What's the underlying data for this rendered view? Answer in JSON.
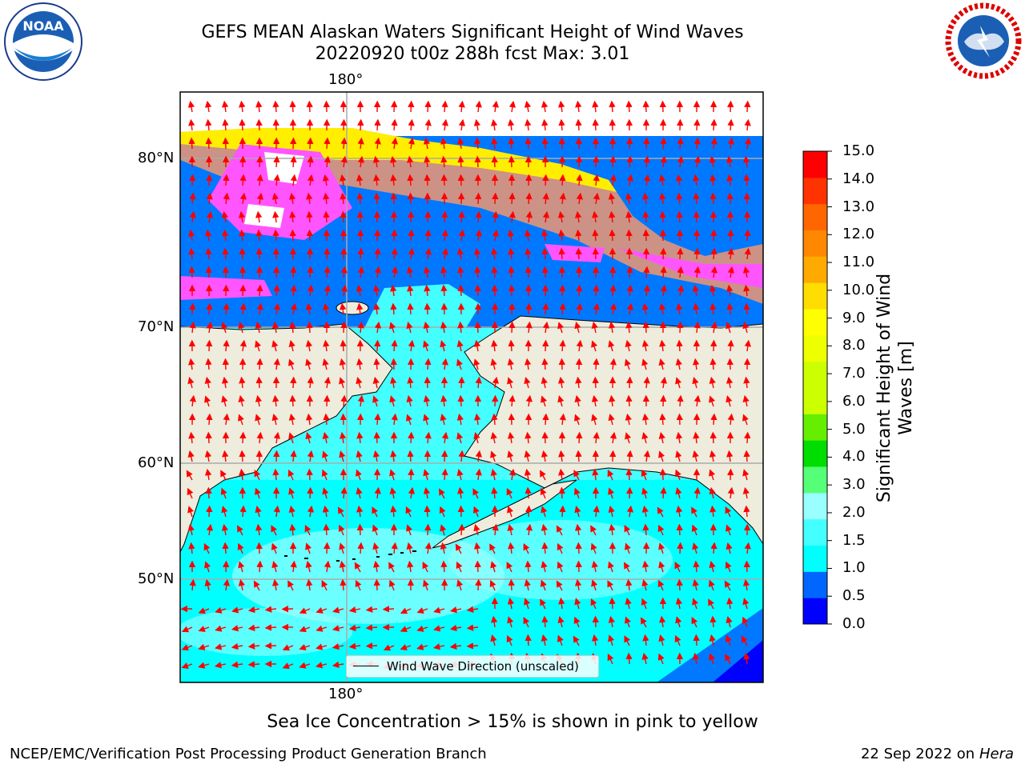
{
  "title": {
    "line1": "GEFS MEAN Alaskan Waters Significant Height of Wind Waves",
    "line2": "20220920 t00z 288h fcst   Max: 3.01"
  },
  "map": {
    "lon_labels": [
      "180°",
      "180°"
    ],
    "lat_labels": [
      "80°N",
      "70°N",
      "60°N",
      "50°N"
    ],
    "legend_text": "Wind Wave Direction (unscaled)",
    "colors": {
      "land": "#eeecdc",
      "ocean_low": "#00ffff",
      "ocean_mid": "#99ffff",
      "ocean_high": "#44ffff",
      "deep_blue": "#0078ff",
      "ice_pink": "#ff55ff",
      "ice_orange": "#ff9966",
      "ice_yellow": "#ffee00",
      "arrow": "#ff0000"
    }
  },
  "colorbar": {
    "title": "Significant Height of Wind Waves [m]",
    "ticks": [
      "15.0",
      "14.0",
      "13.0",
      "12.0",
      "11.0",
      "10.0",
      "9.0",
      "8.0",
      "7.0",
      "6.0",
      "5.0",
      "4.0",
      "3.0",
      "2.0",
      "1.5",
      "1.0",
      "0.5",
      "0.0"
    ],
    "colors": [
      "#0000ff",
      "#0066ff",
      "#00ffff",
      "#44ffff",
      "#99ffff",
      "#55ff77",
      "#00dd00",
      "#66ee00",
      "#ccff00",
      "#ccff00",
      "#eeff00",
      "#ffff00",
      "#ffdd00",
      "#ffaa00",
      "#ff8800",
      "#ff6600",
      "#ff3300",
      "#ff0000"
    ]
  },
  "ice_note": "Sea Ice Concentration > 15% is shown in pink to yellow",
  "footer": {
    "left": "NCEP/EMC/Verification Post Processing Product Generation Branch",
    "right_date": "22 Sep 2022 on",
    "right_host": "Hera"
  },
  "logos": {
    "noaa_text": "NOAA",
    "nws_text": "NATIONAL WEATHER SERVICE"
  }
}
